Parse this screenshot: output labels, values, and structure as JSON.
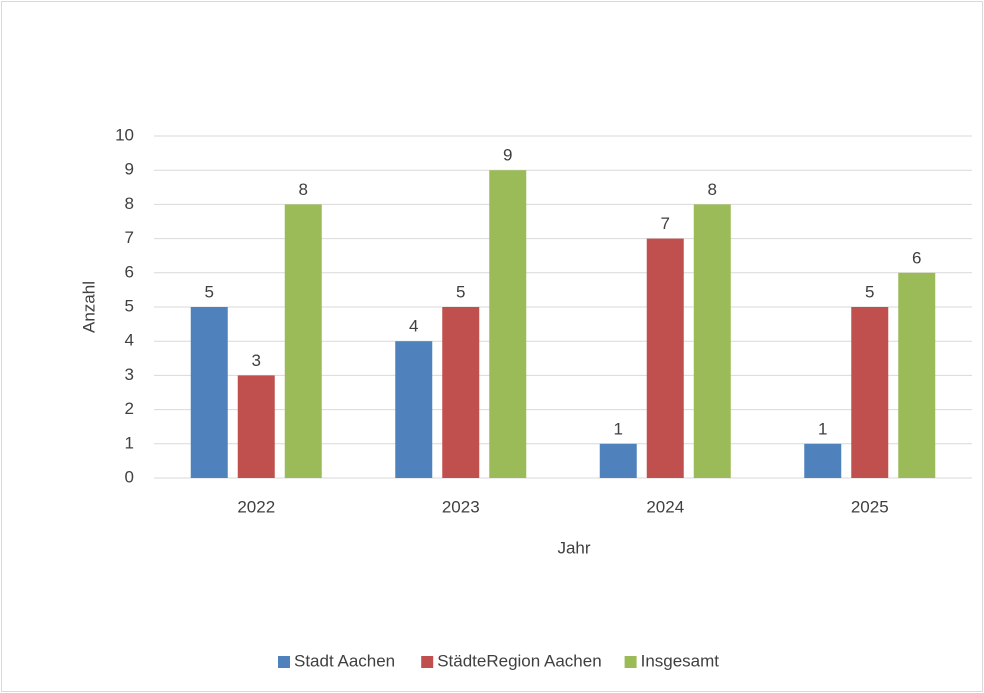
{
  "chart_data": {
    "type": "bar",
    "categories": [
      "2022",
      "2023",
      "2024",
      "2025"
    ],
    "series": [
      {
        "name": "Stadt Aachen",
        "color": "#4f81bd",
        "values": [
          5,
          4,
          1,
          1
        ]
      },
      {
        "name": "StädteRegion Aachen",
        "color": "#c0504d",
        "values": [
          3,
          5,
          7,
          5
        ]
      },
      {
        "name": "Insgesamt",
        "color": "#9bbb59",
        "values": [
          8,
          9,
          8,
          6
        ]
      }
    ],
    "ylim": [
      0,
      10
    ],
    "yticks": [
      0,
      1,
      2,
      3,
      4,
      5,
      6,
      7,
      8,
      9,
      10
    ],
    "xlabel": "Jahr",
    "ylabel": "Anzahl",
    "grid": true,
    "legend": "bottom"
  }
}
